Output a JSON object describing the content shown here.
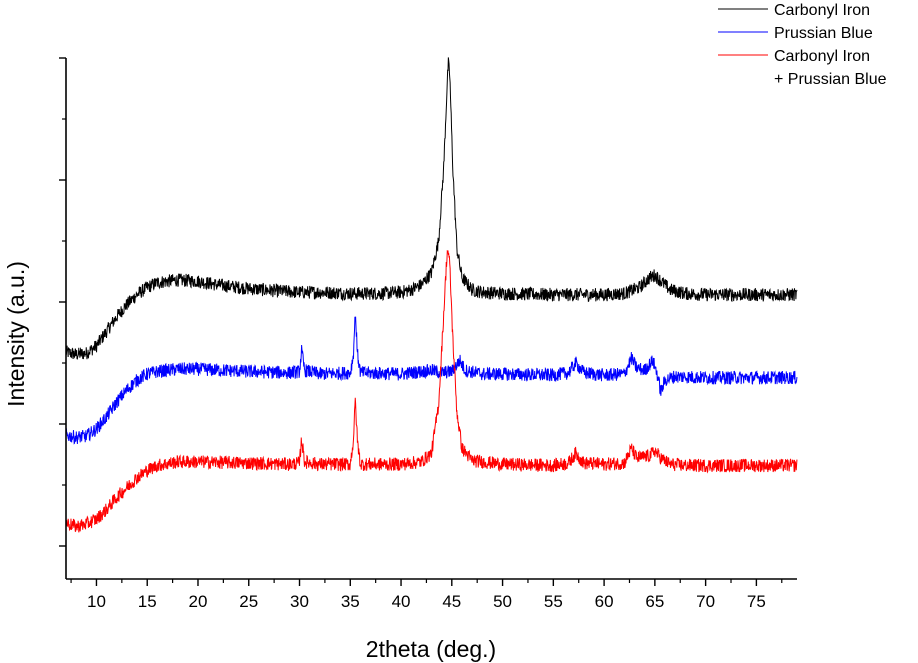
{
  "chart_data": {
    "type": "line",
    "xlabel": "2theta (deg.)",
    "ylabel": "Intensity (a.u.)",
    "xlim": [
      7,
      79
    ],
    "x_ticks": [
      10,
      15,
      20,
      25,
      30,
      35,
      40,
      45,
      50,
      55,
      60,
      65,
      70,
      75
    ],
    "y_tick_labels_shown": false,
    "grid": false,
    "legend_position": "top-right",
    "series": [
      {
        "name": "Carbonyl Iron",
        "color": "#000000",
        "baseline": 7.0,
        "points": [
          [
            7,
            0.95
          ],
          [
            8,
            0.85
          ],
          [
            9,
            0.9
          ],
          [
            10,
            1.2
          ],
          [
            11,
            1.8
          ],
          [
            12,
            2.4
          ],
          [
            13,
            2.9
          ],
          [
            14,
            3.3
          ],
          [
            15,
            3.6
          ],
          [
            16,
            3.8
          ],
          [
            18,
            3.9
          ],
          [
            20,
            3.85
          ],
          [
            22,
            3.7
          ],
          [
            25,
            3.55
          ],
          [
            28,
            3.45
          ],
          [
            30,
            3.4
          ],
          [
            32,
            3.4
          ],
          [
            35,
            3.35
          ],
          [
            38,
            3.35
          ],
          [
            40,
            3.4
          ],
          [
            41,
            3.5
          ],
          [
            42,
            3.7
          ],
          [
            43,
            4.2
          ],
          [
            43.7,
            5.5
          ],
          [
            44.2,
            8.5
          ],
          [
            44.5,
            11.5
          ],
          [
            44.65,
            12.8
          ],
          [
            44.8,
            12.3
          ],
          [
            45.1,
            8.5
          ],
          [
            45.5,
            5.2
          ],
          [
            46,
            4.0
          ],
          [
            47,
            3.5
          ],
          [
            48,
            3.4
          ],
          [
            50,
            3.35
          ],
          [
            55,
            3.3
          ],
          [
            60,
            3.3
          ],
          [
            62,
            3.35
          ],
          [
            63.5,
            3.6
          ],
          [
            64.5,
            4.0
          ],
          [
            65,
            4.1
          ],
          [
            65.5,
            3.9
          ],
          [
            66.5,
            3.5
          ],
          [
            68,
            3.35
          ],
          [
            70,
            3.3
          ],
          [
            75,
            3.3
          ],
          [
            79,
            3.3
          ]
        ]
      },
      {
        "name": "Prussian Blue",
        "color": "#0000ff",
        "baseline": 3.6,
        "points": [
          [
            7,
            0.95
          ],
          [
            8,
            0.85
          ],
          [
            9,
            0.9
          ],
          [
            10,
            1.2
          ],
          [
            11,
            1.7
          ],
          [
            12,
            2.3
          ],
          [
            13,
            2.8
          ],
          [
            14,
            3.2
          ],
          [
            15,
            3.45
          ],
          [
            16,
            3.55
          ],
          [
            18,
            3.65
          ],
          [
            20,
            3.65
          ],
          [
            25,
            3.55
          ],
          [
            29,
            3.5
          ],
          [
            30,
            3.55
          ],
          [
            30.2,
            4.4
          ],
          [
            30.5,
            3.6
          ],
          [
            32,
            3.45
          ],
          [
            35,
            3.5
          ],
          [
            35.3,
            4.2
          ],
          [
            35.5,
            6.0
          ],
          [
            35.7,
            4.3
          ],
          [
            36,
            3.5
          ],
          [
            40,
            3.45
          ],
          [
            42,
            3.55
          ],
          [
            43,
            3.6
          ],
          [
            44,
            3.5
          ],
          [
            45,
            3.55
          ],
          [
            45.8,
            4.0
          ],
          [
            46.3,
            3.6
          ],
          [
            48,
            3.45
          ],
          [
            50,
            3.45
          ],
          [
            55,
            3.4
          ],
          [
            56.5,
            3.5
          ],
          [
            57.2,
            3.9
          ],
          [
            58,
            3.5
          ],
          [
            60,
            3.4
          ],
          [
            62,
            3.45
          ],
          [
            62.7,
            4.1
          ],
          [
            63.2,
            3.7
          ],
          [
            64,
            3.6
          ],
          [
            64.8,
            4.0
          ],
          [
            65.2,
            3.5
          ],
          [
            65.6,
            2.7
          ],
          [
            66,
            3.2
          ],
          [
            67,
            3.35
          ],
          [
            70,
            3.3
          ],
          [
            75,
            3.3
          ],
          [
            79,
            3.3
          ]
        ]
      },
      {
        "name": "Carbonyl Iron\n+ Prussian Blue",
        "color": "#ff0000",
        "baseline": 0.0,
        "points": [
          [
            7,
            0.95
          ],
          [
            8,
            0.8
          ],
          [
            9,
            0.9
          ],
          [
            10,
            1.1
          ],
          [
            11,
            1.5
          ],
          [
            12,
            2.0
          ],
          [
            13,
            2.4
          ],
          [
            14,
            2.8
          ],
          [
            15,
            3.1
          ],
          [
            16,
            3.3
          ],
          [
            18,
            3.45
          ],
          [
            20,
            3.45
          ],
          [
            25,
            3.4
          ],
          [
            29,
            3.35
          ],
          [
            30,
            3.4
          ],
          [
            30.2,
            4.4
          ],
          [
            30.5,
            3.45
          ],
          [
            32,
            3.35
          ],
          [
            35,
            3.35
          ],
          [
            35.3,
            4.3
          ],
          [
            35.5,
            6.0
          ],
          [
            35.7,
            4.3
          ],
          [
            36,
            3.35
          ],
          [
            40,
            3.35
          ],
          [
            42,
            3.45
          ],
          [
            43,
            3.8
          ],
          [
            43.7,
            5.8
          ],
          [
            44.2,
            9.5
          ],
          [
            44.5,
            11.8
          ],
          [
            44.6,
            12.2
          ],
          [
            44.8,
            11.5
          ],
          [
            45.1,
            8.5
          ],
          [
            45.5,
            5.5
          ],
          [
            46,
            4.0
          ],
          [
            47,
            3.5
          ],
          [
            50,
            3.35
          ],
          [
            55,
            3.3
          ],
          [
            56.5,
            3.4
          ],
          [
            57.2,
            3.8
          ],
          [
            58,
            3.4
          ],
          [
            60,
            3.35
          ],
          [
            62,
            3.4
          ],
          [
            62.7,
            4.0
          ],
          [
            63.2,
            3.6
          ],
          [
            64.5,
            3.7
          ],
          [
            65,
            3.9
          ],
          [
            65.6,
            3.6
          ],
          [
            66.5,
            3.35
          ],
          [
            68,
            3.3
          ],
          [
            70,
            3.3
          ],
          [
            75,
            3.3
          ],
          [
            79,
            3.3
          ]
        ]
      }
    ]
  }
}
